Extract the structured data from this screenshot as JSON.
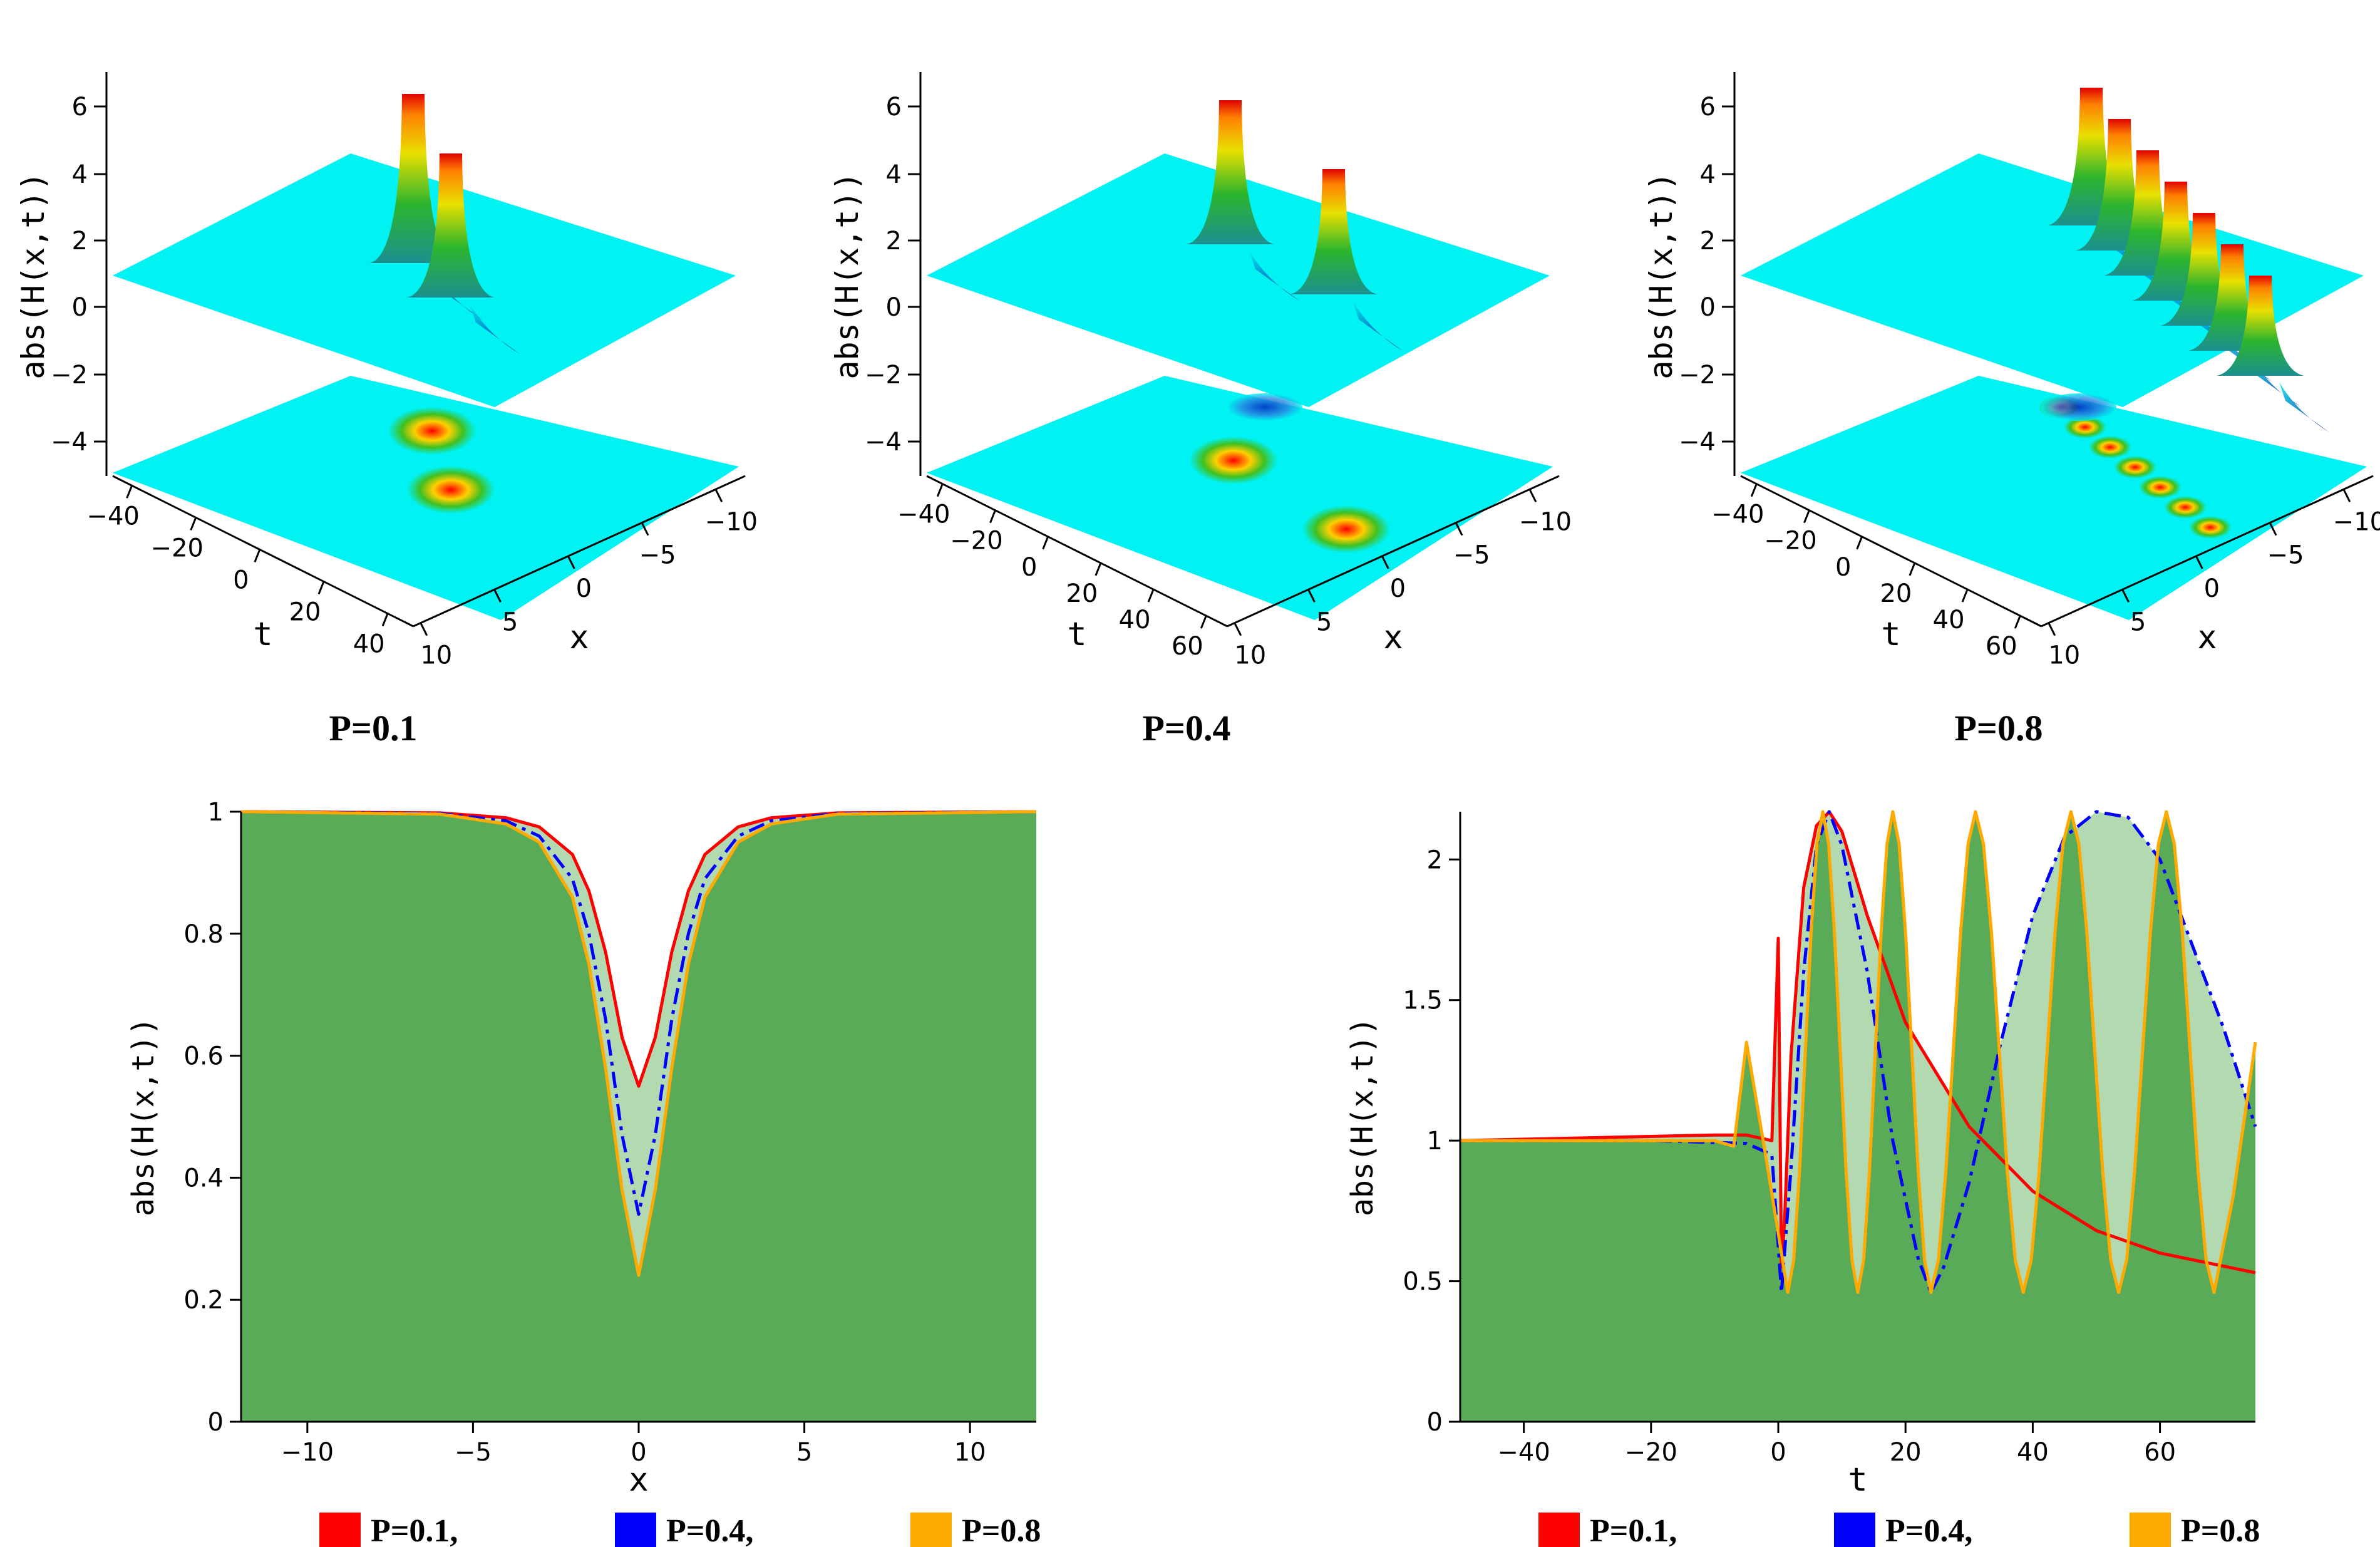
{
  "figure": {
    "panel_captions": [
      "P=0.1",
      "P=0.4",
      "P=0.8"
    ]
  },
  "colors": {
    "p01": "#ff0000",
    "p04": "#0000ff",
    "p08": "#ffaa00",
    "fill_dark": "#5aab58",
    "fill_light": "#b3d9b0",
    "surface": "#00f2f2"
  },
  "surface_plots": [
    {
      "caption": "P=0.1",
      "z_label": "abs(H(x,t))",
      "z_ticks": [
        "6",
        "4",
        "2",
        "0",
        "−2",
        "−4"
      ],
      "t_label": "t",
      "t_ticks": [
        "−40",
        "−20",
        "0",
        "20",
        "40"
      ],
      "x_label": "x",
      "x_ticks": [
        "10",
        "5",
        "0",
        "−5",
        "−10"
      ],
      "peak_count": 2
    },
    {
      "caption": "P=0.4",
      "z_label": "abs(H(x,t))",
      "z_ticks": [
        "6",
        "4",
        "2",
        "0",
        "−2",
        "−4"
      ],
      "t_label": "t",
      "t_ticks": [
        "−40",
        "−20",
        "0",
        "20",
        "40",
        "60"
      ],
      "x_label": "x",
      "x_ticks": [
        "10",
        "5",
        "0",
        "−5",
        "−10"
      ],
      "peak_count": 2
    },
    {
      "caption": "P=0.8",
      "z_label": "abs(H(x,t))",
      "z_ticks": [
        "6",
        "4",
        "2",
        "0",
        "−2",
        "−4"
      ],
      "t_label": "t",
      "t_ticks": [
        "−40",
        "−20",
        "0",
        "20",
        "40",
        "60"
      ],
      "x_label": "x",
      "x_ticks": [
        "10",
        "5",
        "0",
        "−5",
        "−10"
      ],
      "peak_count": 7
    }
  ],
  "chart_data": [
    {
      "type": "area",
      "title": "",
      "xlabel": "x",
      "ylabel": "abs(H(x,t))",
      "xlim": [
        -12,
        12
      ],
      "ylim": [
        0,
        1
      ],
      "xticks": [
        -10,
        -5,
        0,
        5,
        10
      ],
      "yticks": [
        0,
        0.2,
        0.4,
        0.6,
        0.8,
        1
      ],
      "ytick_labels": [
        "0",
        "0.2",
        "0.4",
        "0.6",
        "0.8",
        "1"
      ],
      "xtick_labels": [
        "−10",
        "−5",
        "0",
        "5",
        "10"
      ],
      "legend": [
        "P=0.1,",
        "P=0.4,",
        "P=0.8"
      ],
      "legend_position": "bottom",
      "series": [
        {
          "name": "P=0.1",
          "style": "solid",
          "x": [
            -12,
            -6,
            -4,
            -3,
            -2,
            -1.5,
            -1,
            -0.5,
            0,
            0.5,
            1,
            1.5,
            2,
            3,
            4,
            6,
            12
          ],
          "values": [
            1,
            0.998,
            0.99,
            0.975,
            0.93,
            0.87,
            0.77,
            0.63,
            0.55,
            0.63,
            0.77,
            0.87,
            0.93,
            0.975,
            0.99,
            0.998,
            1
          ]
        },
        {
          "name": "P=0.4",
          "style": "dashdot",
          "x": [
            -12,
            -6,
            -4,
            -3,
            -2,
            -1.5,
            -1,
            -0.5,
            0,
            0.5,
            1,
            1.5,
            2,
            3,
            4,
            6,
            12
          ],
          "values": [
            1,
            0.997,
            0.985,
            0.96,
            0.89,
            0.8,
            0.66,
            0.47,
            0.34,
            0.47,
            0.66,
            0.8,
            0.89,
            0.96,
            0.985,
            0.997,
            1
          ]
        },
        {
          "name": "P=0.8",
          "style": "solid",
          "x": [
            -12,
            -6,
            -4,
            -3,
            -2,
            -1.5,
            -1,
            -0.5,
            0,
            0.5,
            1,
            1.5,
            2,
            3,
            4,
            6,
            12
          ],
          "values": [
            1,
            0.996,
            0.98,
            0.95,
            0.86,
            0.75,
            0.58,
            0.38,
            0.24,
            0.38,
            0.58,
            0.75,
            0.86,
            0.95,
            0.98,
            0.996,
            1
          ]
        }
      ]
    },
    {
      "type": "area",
      "title": "",
      "xlabel": "t",
      "ylabel": "abs(H(x,t))",
      "xlim": [
        -50,
        75
      ],
      "ylim": [
        0,
        2.17
      ],
      "xticks": [
        -40,
        -20,
        0,
        20,
        40,
        60
      ],
      "xtick_labels": [
        "−40",
        "−20",
        "0",
        "20",
        "40",
        "60"
      ],
      "yticks": [
        0,
        0.5,
        1,
        1.5,
        2
      ],
      "ytick_labels": [
        "0",
        "0.5",
        "1",
        "1.5",
        "2"
      ],
      "legend": [
        "P=0.1,",
        "P=0.4,",
        "P=0.8"
      ],
      "legend_position": "bottom",
      "series": [
        {
          "name": "P=0.1",
          "style": "solid",
          "x": [
            -50,
            -30,
            -10,
            -5,
            -1,
            0,
            0.5,
            1,
            2,
            4,
            6,
            8,
            10,
            14,
            20,
            30,
            40,
            50,
            60,
            75
          ],
          "values": [
            1,
            1.01,
            1.02,
            1.02,
            1.0,
            1.72,
            0.55,
            0.72,
            1.3,
            1.9,
            2.12,
            2.17,
            2.1,
            1.8,
            1.42,
            1.05,
            0.82,
            0.68,
            0.6,
            0.53
          ]
        },
        {
          "name": "P=0.4",
          "style": "dashdot",
          "x": [
            -50,
            -20,
            -5,
            -1,
            0.5,
            2,
            4,
            6,
            8,
            10,
            14,
            18,
            22,
            24,
            26,
            30,
            35,
            40,
            45,
            50,
            55,
            60,
            65,
            70,
            75
          ],
          "values": [
            1,
            1.0,
            0.99,
            0.95,
            0.46,
            0.9,
            1.6,
            2.05,
            2.17,
            2.05,
            1.6,
            1.0,
            0.58,
            0.46,
            0.55,
            0.85,
            1.35,
            1.8,
            2.08,
            2.17,
            2.15,
            2.0,
            1.7,
            1.4,
            1.05
          ]
        }
      ],
      "series_p08": {
        "name": "P=0.8",
        "style": "solid",
        "peaks_t": [
          -5,
          7,
          18,
          31,
          46,
          61
        ],
        "troughs_t": [
          1.5,
          12.5,
          24,
          38.5,
          53.5,
          68.5
        ],
        "peak_value": 2.17,
        "first_peak_value": 1.35,
        "trough_value": 0.46,
        "end_value": 1.35
      }
    }
  ]
}
